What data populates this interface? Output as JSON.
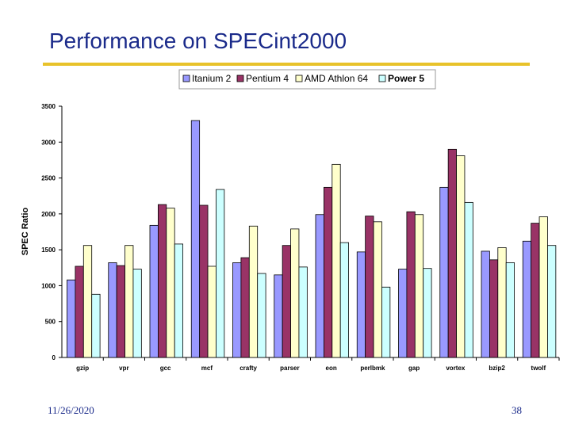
{
  "slide": {
    "title": "Performance on SPECint2000",
    "date": "11/26/2020",
    "page_number": "38"
  },
  "chart_data": {
    "type": "bar",
    "title": "Performance on SPECint2000",
    "xlabel": "",
    "ylabel": "SPEC Ratio",
    "ylim": [
      0,
      3500
    ],
    "yticks": [
      0,
      500,
      1000,
      1500,
      2000,
      2500,
      3000,
      3500
    ],
    "ytick_labels": [
      "0",
      "500",
      "1000",
      "1500",
      "2000",
      "2500",
      "3000",
      "3500"
    ],
    "grid": false,
    "legend_position": "top-center",
    "categories": [
      "gzip",
      "vpr",
      "gcc",
      "mcf",
      "crafty",
      "parser",
      "eon",
      "perlbmk",
      "gap",
      "vortex",
      "bzip2",
      "twolf"
    ],
    "series": [
      {
        "name": "Itanium 2",
        "color": "#9999ff",
        "values": [
          1080,
          1320,
          1840,
          3300,
          1320,
          1150,
          1990,
          1470,
          1230,
          2370,
          1480,
          1620
        ]
      },
      {
        "name": "Pentium 4",
        "color": "#993366",
        "values": [
          1270,
          1280,
          2130,
          2120,
          1390,
          1560,
          2370,
          1970,
          2030,
          2900,
          1360,
          1870
        ]
      },
      {
        "name": "AMD Athlon 64",
        "color": "#ffffcc",
        "values": [
          1560,
          1560,
          2080,
          1270,
          1830,
          1790,
          2690,
          1890,
          1990,
          2810,
          1530,
          1960
        ]
      },
      {
        "name": "Power 5",
        "color": "#ccffff",
        "values": [
          880,
          1230,
          1580,
          2340,
          1170,
          1260,
          1600,
          980,
          1240,
          2160,
          1320,
          1560
        ]
      }
    ]
  }
}
